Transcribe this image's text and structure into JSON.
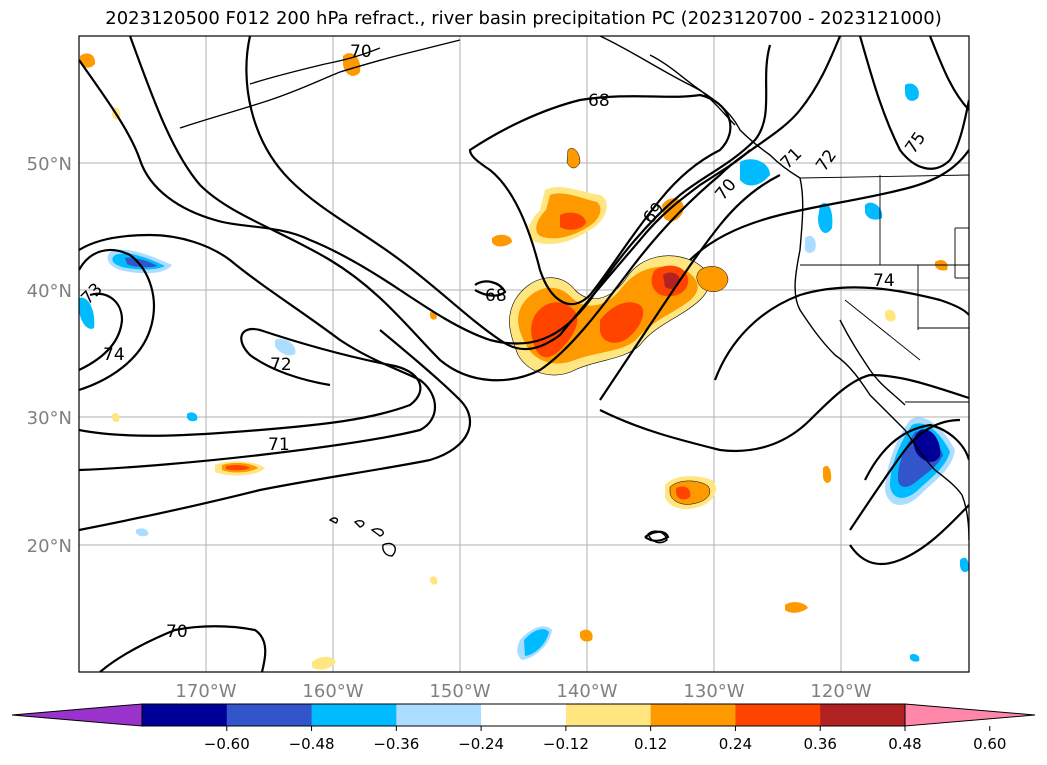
{
  "title": "2023120500 F012 200 hPa refract., river basin precipitation PC (2023120700 - 2023121000)",
  "map": {
    "lat_labels": [
      "50°N",
      "40°N",
      "30°N",
      "20°N"
    ],
    "lon_labels": [
      "170°W",
      "160°W",
      "150°W",
      "140°W",
      "130°W",
      "120°W"
    ],
    "contour_labels": [
      "68",
      "68",
      "69",
      "70",
      "71",
      "71",
      "72",
      "72",
      "73",
      "74",
      "74",
      "75",
      "70",
      "70"
    ]
  },
  "colorbar": {
    "labels": [
      "−0.60",
      "−0.48",
      "−0.36",
      "−0.24",
      "−0.12",
      "0.12",
      "0.24",
      "0.36",
      "0.48",
      "0.60"
    ],
    "colors": [
      "#9933cc",
      "#000099",
      "#3355cc",
      "#00bbff",
      "#aaddff",
      "#ffffff",
      "#ffe680",
      "#ff9900",
      "#ff4400",
      "#b22222",
      "#ff88aa"
    ]
  }
}
